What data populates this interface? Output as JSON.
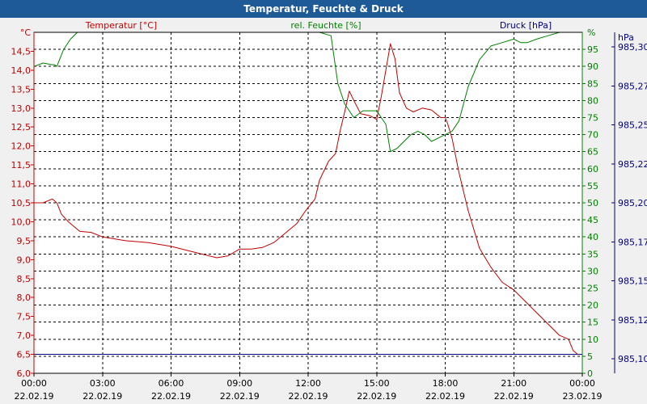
{
  "title": "Temperatur, Feuchte & Druck",
  "chart_data": {
    "type": "line",
    "title": "Temperatur, Feuchte & Druck",
    "x_ticks": [
      {
        "time": "00:00",
        "date": "22.02.19"
      },
      {
        "time": "03:00",
        "date": "22.02.19"
      },
      {
        "time": "06:00",
        "date": "22.02.19"
      },
      {
        "time": "09:00",
        "date": "22.02.19"
      },
      {
        "time": "12:00",
        "date": "22.02.19"
      },
      {
        "time": "15:00",
        "date": "22.02.19"
      },
      {
        "time": "18:00",
        "date": "22.02.19"
      },
      {
        "time": "21:00",
        "date": "22.02.19"
      },
      {
        "time": "00:00",
        "date": "23.02.19"
      }
    ],
    "xlim_hours": [
      0,
      24
    ],
    "axes": {
      "temperature": {
        "label": "Temperatur [°C]",
        "unit": "°C",
        "color": "#c00000",
        "ylim": [
          6.0,
          15.0
        ],
        "ticks": [
          "6,0",
          "6,5",
          "7,0",
          "7,5",
          "8,0",
          "8,5",
          "9,0",
          "9,5",
          "10,0",
          "10,5",
          "11,0",
          "11,5",
          "12,0",
          "12,5",
          "13,0",
          "13,5",
          "14,0",
          "14,5"
        ]
      },
      "humidity": {
        "label": "rel. Feuchte [%]",
        "unit": "%",
        "color": "#008000",
        "ylim": [
          0,
          100
        ],
        "ticks": [
          "0",
          "5",
          "10",
          "15",
          "20",
          "25",
          "30",
          "35",
          "40",
          "45",
          "50",
          "55",
          "60",
          "65",
          "70",
          "75",
          "80",
          "85",
          "90",
          "95"
        ]
      },
      "pressure": {
        "label": "Druck [hPa]",
        "unit": "hPa",
        "color": "#000080",
        "ylim": [
          985.09,
          985.31
        ],
        "ticks": [
          "985,10",
          "985,12",
          "985,15",
          "985,17",
          "985,20",
          "985,22",
          "985,25",
          "985,27",
          "985,30"
        ]
      }
    },
    "grid": true,
    "series": [
      {
        "name": "Temperatur [°C]",
        "axis": "temperature",
        "color": "#c00000",
        "x": [
          0,
          0.4,
          0.8,
          1.0,
          1.2,
          1.5,
          2.0,
          2.5,
          3.0,
          3.5,
          4.0,
          5.0,
          6.0,
          7.0,
          8.0,
          8.5,
          9.0,
          9.5,
          10.0,
          10.5,
          11.0,
          11.5,
          11.9,
          12.3,
          12.5,
          12.9,
          13.2,
          13.4,
          13.6,
          13.8,
          14.0,
          14.3,
          14.7,
          15.0,
          15.2,
          15.4,
          15.6,
          15.8,
          16.0,
          16.3,
          16.6,
          17.0,
          17.4,
          17.8,
          18.0,
          18.1,
          18.3,
          18.6,
          19.0,
          19.5,
          20.0,
          20.5,
          21.0,
          21.5,
          22.0,
          22.5,
          23.0,
          23.4,
          23.6,
          23.8
        ],
        "y": [
          10.5,
          10.5,
          10.6,
          10.5,
          10.2,
          10.0,
          9.75,
          9.72,
          9.6,
          9.55,
          9.5,
          9.45,
          9.35,
          9.2,
          9.05,
          9.1,
          9.28,
          9.28,
          9.32,
          9.45,
          9.7,
          9.95,
          10.3,
          10.6,
          11.1,
          11.6,
          11.8,
          12.4,
          12.9,
          13.45,
          13.2,
          12.85,
          12.8,
          12.7,
          13.3,
          14.0,
          14.7,
          14.3,
          13.4,
          13.0,
          12.9,
          13.0,
          12.95,
          12.75,
          12.75,
          12.6,
          12.2,
          11.3,
          10.3,
          9.3,
          8.8,
          8.4,
          8.2,
          7.9,
          7.6,
          7.3,
          7.0,
          6.9,
          6.6,
          6.5
        ]
      },
      {
        "name": "rel. Feuchte [%]",
        "axis": "humidity",
        "color": "#008000",
        "x": [
          0,
          0.4,
          0.8,
          0.9,
          1.0,
          1.3,
          1.6,
          1.9,
          2.0,
          12.5,
          13.0,
          13.3,
          13.6,
          14.0,
          14.4,
          14.8,
          15.0,
          15.2,
          15.4,
          15.6,
          15.9,
          16.2,
          16.5,
          16.8,
          17.1,
          17.4,
          17.7,
          18.0,
          18.3,
          18.6,
          19.0,
          19.5,
          20.0,
          20.5,
          21.0,
          21.3,
          21.6,
          22.0,
          22.5,
          23.0,
          23.5,
          24.0
        ],
        "y": [
          90,
          91,
          90.5,
          90.5,
          90,
          95,
          98,
          100,
          100,
          100,
          99,
          85,
          79,
          75,
          77,
          77,
          77,
          75,
          73,
          65,
          66,
          68,
          70,
          71,
          70,
          68,
          69,
          70,
          71,
          74,
          84,
          92,
          96,
          97,
          98,
          97,
          97,
          98,
          99,
          100,
          100,
          100
        ]
      }
    ],
    "annotations": [
      {
        "type": "hline",
        "axis": "temperature",
        "value": 6.5,
        "color": "#000080"
      }
    ]
  }
}
